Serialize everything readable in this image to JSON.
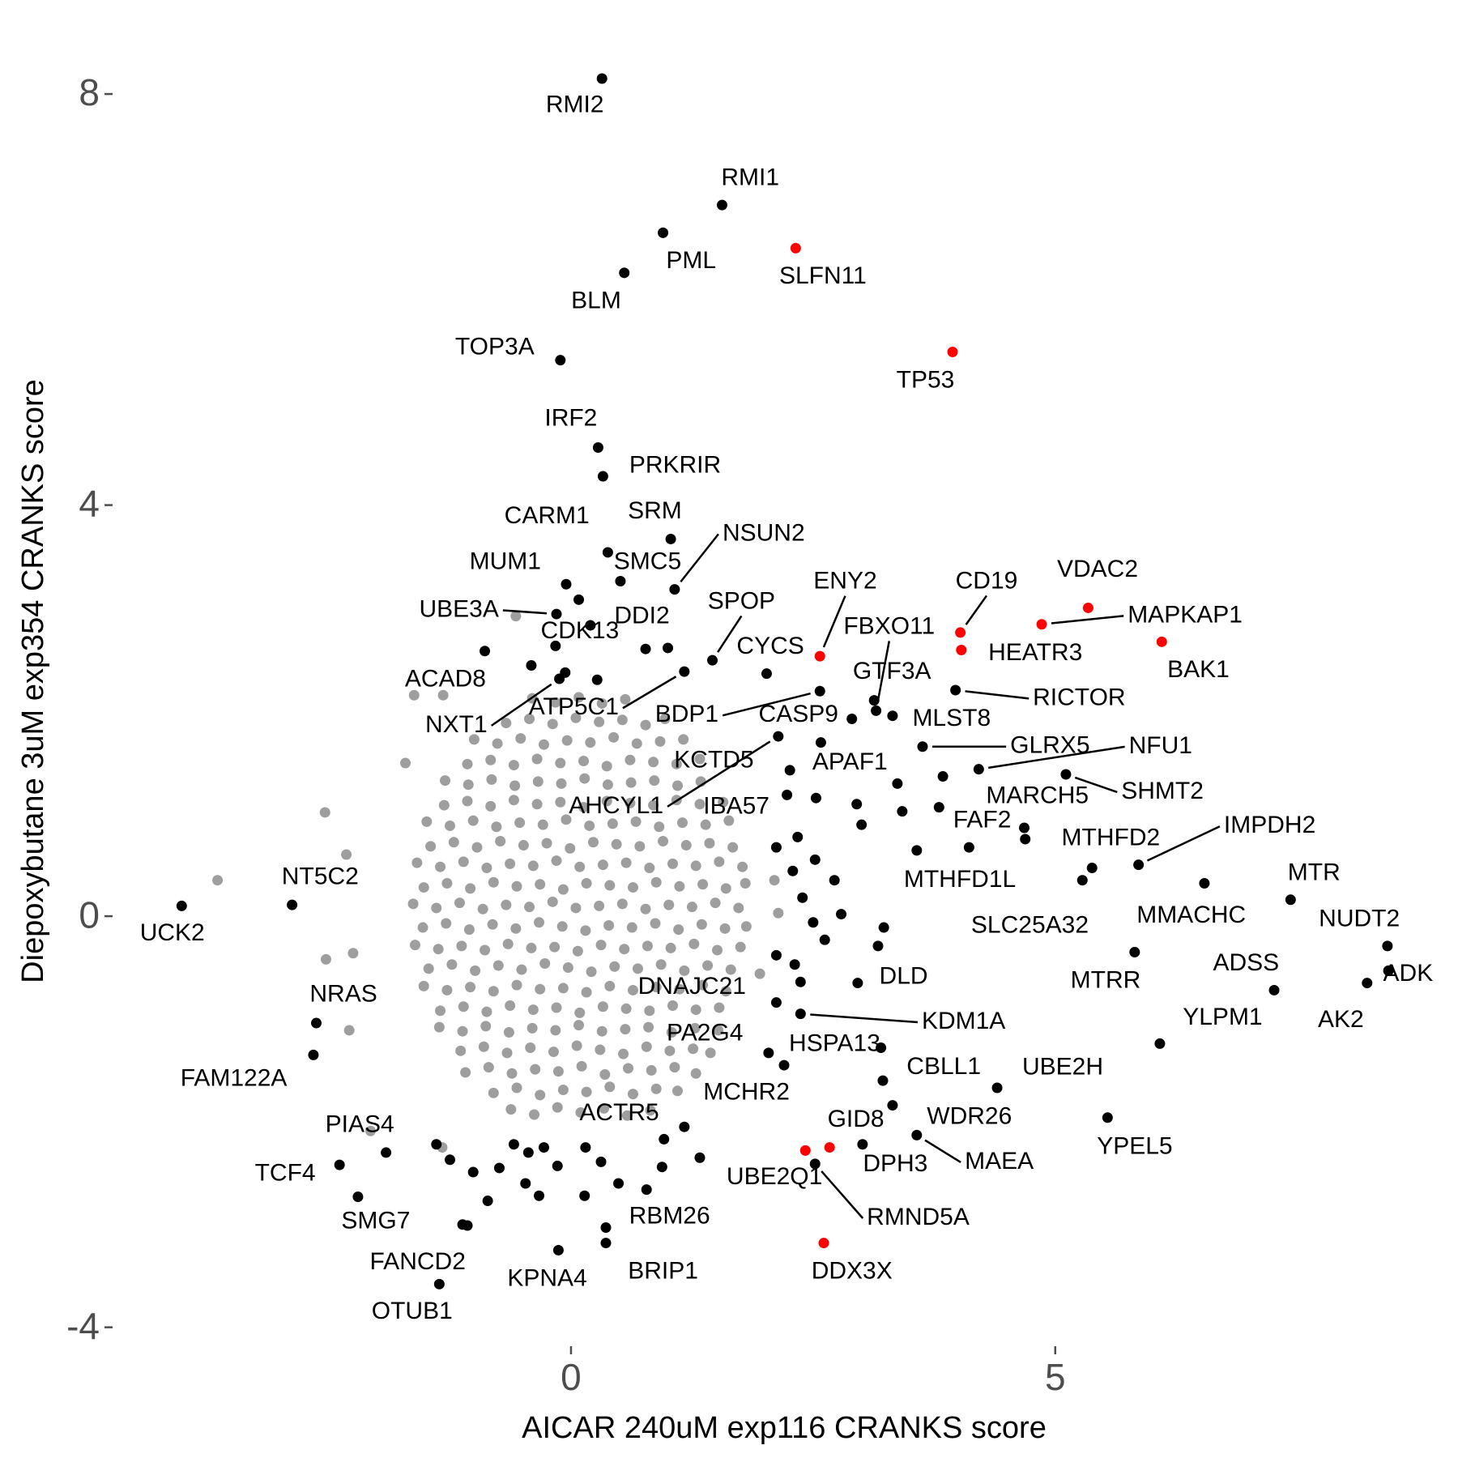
{
  "chart_data": {
    "type": "scatter",
    "xlabel": "AICAR 240uM exp116 CRANKS score",
    "ylabel": "Diepoxybutane 3uM exp354 CRANKS score",
    "xlim": [
      -4.7,
      9.1
    ],
    "ylim": [
      -4.2,
      8.3
    ],
    "xticks": [
      0,
      5
    ],
    "yticks": [
      -4,
      0,
      4,
      8
    ],
    "grid": false,
    "series": [
      {
        "color": "#9e9e9e",
        "x": [
          -0.62,
          -0.38,
          -0.14,
          0.1,
          0.34,
          0.58,
          0.82,
          -0.8,
          -0.56,
          -0.32,
          -0.08,
          0.16,
          0.4,
          0.64,
          0.88,
          1.1,
          -1.09,
          -0.85,
          -0.61,
          -0.37,
          -0.13,
          0.11,
          0.35,
          0.59,
          0.83,
          1.07,
          1.29,
          -1.14,
          -0.9,
          -0.66,
          -0.42,
          -0.18,
          0.06,
          0.3,
          0.54,
          0.78,
          1.02,
          1.26,
          1.44,
          -1.36,
          -1.12,
          -0.88,
          -0.64,
          -0.4,
          -0.16,
          0.08,
          0.32,
          0.56,
          0.8,
          1.04,
          1.28,
          1.52,
          -1.35,
          -1.11,
          -0.87,
          -0.63,
          -0.39,
          -0.15,
          0.09,
          0.33,
          0.57,
          0.81,
          1.05,
          1.29,
          1.53,
          -1.52,
          -1.28,
          -1.04,
          -0.8,
          -0.56,
          -0.32,
          -0.08,
          0.16,
          0.4,
          0.64,
          0.88,
          1.12,
          1.36,
          1.6,
          -1.47,
          -1.23,
          -0.99,
          -0.75,
          -0.51,
          -0.27,
          -0.03,
          0.21,
          0.45,
          0.69,
          0.93,
          1.17,
          1.41,
          1.65,
          -1.61,
          -1.37,
          -1.13,
          -0.89,
          -0.65,
          -0.41,
          -0.17,
          0.07,
          0.31,
          0.55,
          0.79,
          1.03,
          1.27,
          1.51,
          1.75,
          -1.53,
          -1.29,
          -1.05,
          -0.81,
          -0.57,
          -0.33,
          -0.09,
          0.15,
          0.39,
          0.63,
          0.87,
          1.11,
          1.35,
          1.59,
          1.81,
          -1.63,
          -1.39,
          -1.15,
          -0.91,
          -0.67,
          -0.43,
          -0.19,
          0.05,
          0.29,
          0.53,
          0.77,
          1.01,
          1.25,
          1.49,
          1.73,
          -1.52,
          -1.28,
          -1.04,
          -0.8,
          -0.56,
          -0.32,
          -0.08,
          0.16,
          0.4,
          0.64,
          0.88,
          1.12,
          1.36,
          1.6,
          1.8,
          -1.59,
          -1.35,
          -1.11,
          -0.87,
          -0.63,
          -0.39,
          -0.15,
          0.09,
          0.33,
          0.57,
          0.81,
          1.05,
          1.29,
          1.53,
          1.77,
          -1.45,
          -1.21,
          -0.97,
          -0.73,
          -0.49,
          -0.25,
          -0.01,
          0.23,
          0.47,
          0.71,
          0.95,
          1.19,
          1.43,
          1.67,
          -1.49,
          -1.25,
          -1.01,
          -0.77,
          -0.53,
          -0.29,
          -0.05,
          0.19,
          0.43,
          0.67,
          0.91,
          1.15,
          1.39,
          1.63,
          -1.31,
          -1.07,
          -0.83,
          -0.59,
          -0.35,
          -0.11,
          0.13,
          0.37,
          0.61,
          0.85,
          1.09,
          1.33,
          1.57,
          -1.3,
          -1.06,
          -0.82,
          -0.58,
          -0.34,
          -0.1,
          0.14,
          0.38,
          0.62,
          0.86,
          1.1,
          1.34,
          -1.07,
          -0.83,
          -0.59,
          -0.35,
          -0.11,
          0.13,
          0.37,
          0.61,
          0.85,
          1.09,
          1.33,
          -1.0,
          -0.76,
          -0.52,
          -0.28,
          -0.04,
          0.2,
          0.44,
          0.68,
          0.92,
          1.16,
          -0.67,
          -0.43,
          -0.19,
          0.05,
          0.29,
          0.53,
          0.77,
          0.97,
          -0.4,
          -0.16,
          0.08,
          0.32,
          0.56,
          -3.65,
          -2.54,
          -2.32,
          -2.25,
          -1.71,
          -1.62,
          -0.57,
          -1.32,
          -1.33,
          -2.07,
          -2.29,
          -2.53,
          2.1,
          2.14,
          1.95
        ],
        "y": [
          -1.88,
          -1.93,
          -1.86,
          -1.91,
          -1.87,
          -1.94,
          -1.89,
          -1.72,
          -1.67,
          -1.74,
          -1.69,
          -1.71,
          -1.66,
          -1.73,
          -1.68,
          -1.7,
          -1.52,
          -1.47,
          -1.53,
          -1.49,
          -1.51,
          -1.46,
          -1.54,
          -1.48,
          -1.5,
          -1.47,
          -1.53,
          -1.31,
          -1.27,
          -1.33,
          -1.28,
          -1.32,
          -1.26,
          -1.3,
          -1.34,
          -1.27,
          -1.31,
          -1.29,
          -1.33,
          -1.08,
          -1.12,
          -1.07,
          -1.13,
          -1.09,
          -1.11,
          -1.06,
          -1.12,
          -1.1,
          -1.08,
          -1.13,
          -1.09,
          -1.11,
          -0.92,
          -0.88,
          -0.93,
          -0.87,
          -0.91,
          -0.89,
          -0.94,
          -0.88,
          -0.9,
          -0.92,
          -0.87,
          -0.91,
          -0.89,
          -0.68,
          -0.72,
          -0.69,
          -0.73,
          -0.67,
          -0.71,
          -0.7,
          -0.74,
          -0.68,
          -0.72,
          -0.69,
          -0.71,
          -0.67,
          -0.73,
          -0.51,
          -0.47,
          -0.53,
          -0.48,
          -0.52,
          -0.46,
          -0.5,
          -0.54,
          -0.49,
          -0.51,
          -0.47,
          -0.53,
          -0.48,
          -0.52,
          -0.28,
          -0.32,
          -0.29,
          -0.33,
          -0.27,
          -0.31,
          -0.3,
          -0.34,
          -0.28,
          -0.32,
          -0.29,
          -0.31,
          -0.27,
          -0.33,
          -0.3,
          -0.11,
          -0.07,
          -0.13,
          -0.08,
          -0.12,
          -0.06,
          -0.1,
          -0.14,
          -0.09,
          -0.11,
          -0.07,
          -0.13,
          -0.08,
          -0.12,
          -0.1,
          0.12,
          0.08,
          0.13,
          0.07,
          0.11,
          0.09,
          0.14,
          0.08,
          0.1,
          0.12,
          0.07,
          0.11,
          0.09,
          0.13,
          0.08,
          0.28,
          0.32,
          0.27,
          0.33,
          0.29,
          0.31,
          0.26,
          0.32,
          0.3,
          0.28,
          0.33,
          0.29,
          0.31,
          0.27,
          0.32,
          0.52,
          0.48,
          0.53,
          0.47,
          0.51,
          0.49,
          0.54,
          0.48,
          0.5,
          0.52,
          0.47,
          0.51,
          0.49,
          0.53,
          0.48,
          0.68,
          0.72,
          0.67,
          0.73,
          0.69,
          0.71,
          0.66,
          0.72,
          0.7,
          0.68,
          0.73,
          0.69,
          0.71,
          0.67,
          0.92,
          0.88,
          0.93,
          0.87,
          0.91,
          0.89,
          0.94,
          0.88,
          0.9,
          0.92,
          0.87,
          0.91,
          0.89,
          0.93,
          1.08,
          1.12,
          1.07,
          1.13,
          1.09,
          1.11,
          1.06,
          1.12,
          1.1,
          1.08,
          1.13,
          1.09,
          1.11,
          1.32,
          1.28,
          1.33,
          1.27,
          1.31,
          1.29,
          1.34,
          1.28,
          1.3,
          1.32,
          1.27,
          1.31,
          1.48,
          1.52,
          1.47,
          1.53,
          1.49,
          1.51,
          1.46,
          1.52,
          1.5,
          1.48,
          1.53,
          1.72,
          1.68,
          1.73,
          1.67,
          1.71,
          1.69,
          1.74,
          1.68,
          1.7,
          1.72,
          1.88,
          1.92,
          1.87,
          1.93,
          1.89,
          1.91,
          1.86,
          1.92,
          2.12,
          2.08,
          2.13,
          2.07,
          2.11,
          0.35,
          1.01,
          0.6,
          -0.36,
          1.49,
          2.15,
          2.92,
          2.15,
          -2.25,
          -2.09,
          -1.11,
          -0.42,
          0.35,
          0.03,
          -0.56
        ]
      },
      {
        "color": "#000000",
        "x": [
          -1.39,
          -1.25,
          -1.01,
          -0.86,
          -1.12,
          -0.59,
          -0.44,
          -0.28,
          -0.14,
          -0.47,
          -0.33,
          0.14,
          0.49,
          0.78,
          0.94,
          1.33,
          0.31,
          -0.74,
          2.12,
          2.29,
          2.39,
          2.5,
          2.62,
          2.79,
          2.72,
          2.52,
          2.34,
          2.53,
          2.95,
          3.0,
          3.37,
          3.42,
          3.84,
          3.8,
          3.23,
          3.17,
          2.12,
          2.31,
          2.37,
          3.2,
          4.69,
          1.17,
          -0.41,
          -0.06,
          0.27,
          0.77,
          1.0,
          0.08
        ],
        "y": [
          -2.22,
          -2.37,
          -2.49,
          -2.77,
          -3.0,
          -2.22,
          -2.3,
          -2.25,
          -2.43,
          -2.6,
          -2.72,
          -2.72,
          -2.6,
          -2.66,
          -2.44,
          -2.35,
          -2.39,
          -2.45,
          0.67,
          0.44,
          0.18,
          -0.06,
          -0.23,
          0.02,
          0.35,
          0.55,
          0.77,
          1.15,
          1.09,
          0.89,
          1.29,
          1.02,
          1.36,
          1.06,
          -0.11,
          -0.29,
          -0.38,
          -0.47,
          -0.64,
          -1.28,
          0.75,
          -2.05,
          2.44,
          2.37,
          2.3,
          2.6,
          2.61,
          3.08
        ]
      },
      {
        "color": "#000000",
        "labels": [
          "RMI2",
          "RMI1",
          "PML",
          "BLM",
          "TOP3A",
          "IRF2",
          "PRKRIR",
          "SRM",
          "CARM1",
          "NSUN2",
          "SMC5",
          "MUM1",
          "UBE3A",
          "DDI2",
          "CDK13",
          "SPOP",
          "CYCS",
          "ACAD8",
          "ATP5C1",
          "NXT1",
          "BDP1",
          "CASP9",
          "GTF3A",
          "FBXO11",
          "MLST8",
          "APAF1",
          "KCTD5",
          "AHCYL1",
          "IBA57",
          "RICTOR",
          "GLRX5",
          "NFU1",
          "SHMT2",
          "MARCH5",
          "FAF2",
          "MTHFD2",
          "IMPDH2",
          "MTHFD1L",
          "SLC25A32",
          "MTR",
          "MMACHC",
          "NUDT2",
          "MTRR",
          "ADSS",
          "AK2",
          "ADK",
          "YLPM1",
          "DLD",
          "KDM1A",
          "DNAJC21",
          "PA2G4",
          "HSPA13",
          "CBLL1",
          "UBE2H",
          "MCHR2",
          "ACTR5",
          "WDR26",
          "YPEL5",
          "MAEA",
          "DPH3",
          "RMND5A",
          "RBM26",
          "BRIP1",
          "KPNA4",
          "FANCD2",
          "OTUB1",
          "SMG7",
          "TCF4",
          "PIAS4",
          "FAM122A",
          "NRAS",
          "NT5C2",
          "UCK2"
        ],
        "x": [
          0.32,
          1.56,
          0.95,
          0.55,
          -0.11,
          0.28,
          0.33,
          1.03,
          0.38,
          1.07,
          0.51,
          -0.05,
          -0.15,
          0.2,
          -0.16,
          1.46,
          2.02,
          -0.89,
          1.17,
          -0.12,
          2.57,
          2.9,
          3.13,
          3.15,
          3.32,
          2.58,
          2.26,
          2.14,
          2.23,
          3.97,
          3.63,
          4.21,
          5.11,
          4.68,
          4.11,
          5.38,
          5.86,
          3.57,
          5.28,
          7.43,
          6.54,
          8.43,
          5.82,
          7.26,
          8.22,
          8.44,
          6.08,
          2.96,
          2.37,
          2.12,
          2.04,
          2.2,
          3.22,
          4.4,
          0.96,
          0.15,
          3.32,
          5.54,
          3.57,
          3.01,
          2.52,
          0.36,
          0.36,
          -0.13,
          -1.07,
          -1.36,
          -2.2,
          -2.39,
          -1.91,
          -2.66,
          -2.63,
          -2.88,
          -4.02
        ],
        "y": [
          8.15,
          6.92,
          6.65,
          6.26,
          5.41,
          4.56,
          4.28,
          3.67,
          3.54,
          3.18,
          3.26,
          3.23,
          2.94,
          2.83,
          2.63,
          2.49,
          2.36,
          2.58,
          2.38,
          2.31,
          2.19,
          1.92,
          2.1,
          2.0,
          1.95,
          1.69,
          1.42,
          1.75,
          1.18,
          2.2,
          1.65,
          1.43,
          1.38,
          0.86,
          0.67,
          0.47,
          0.5,
          0.64,
          0.35,
          0.16,
          0.32,
          -0.29,
          -0.35,
          -0.72,
          -0.65,
          -0.53,
          -1.24,
          -0.65,
          -0.95,
          -0.84,
          -1.33,
          -1.45,
          -1.6,
          -1.67,
          -2.17,
          -2.25,
          -1.84,
          -1.96,
          -2.13,
          -2.22,
          -2.41,
          -3.03,
          -3.18,
          -3.25,
          -3.01,
          -3.58,
          -2.73,
          -2.42,
          -2.3,
          -1.35,
          -1.04,
          0.11,
          0.1
        ]
      },
      {
        "color": "#ff0000",
        "labels": [
          "SLFN11",
          "TP53",
          "ENY2",
          "CD19",
          "HEATR3",
          "VDAC2",
          "MAPKAP1",
          "BAK1",
          "GID8",
          "UBE2Q1",
          "DDX3X"
        ],
        "x": [
          2.32,
          3.94,
          2.57,
          4.02,
          4.03,
          5.34,
          4.86,
          6.1,
          2.67,
          2.42,
          2.61
        ],
        "y": [
          6.5,
          5.49,
          2.53,
          2.76,
          2.59,
          3.0,
          2.84,
          2.67,
          -2.25,
          -2.28,
          -3.18
        ]
      }
    ]
  }
}
